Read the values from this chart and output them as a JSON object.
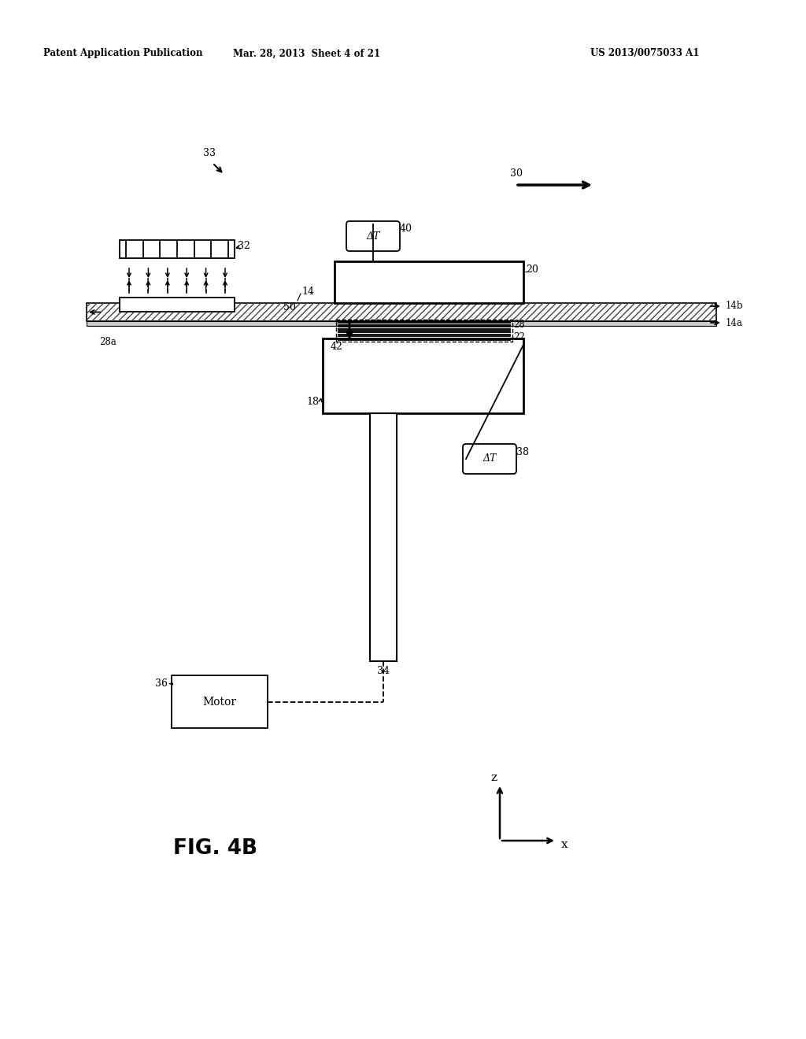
{
  "bg_color": "#ffffff",
  "header_left": "Patent Application Publication",
  "header_center": "Mar. 28, 2013  Sheet 4 of 21",
  "header_right": "US 2013/0075033 A1",
  "fig_label": "FIG. 4B",
  "black": "#000000",
  "lw_thin": 1.0,
  "lw_med": 1.5,
  "lw_thick": 2.0
}
